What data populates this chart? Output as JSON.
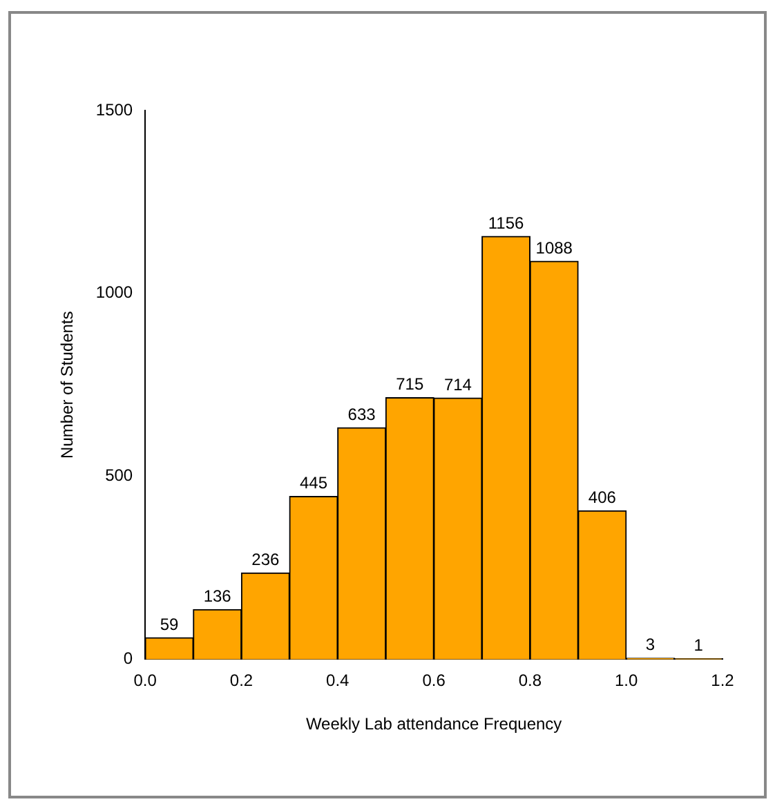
{
  "chart_data": {
    "type": "histogram",
    "xlabel": "Weekly Lab attendance Frequency",
    "ylabel": "Number of Students",
    "bins": [
      0,
      0.1,
      0.2,
      0.3,
      0.4,
      0.5,
      0.6,
      0.7,
      0.8,
      0.9,
      1.0,
      1.1,
      1.2
    ],
    "values": [
      59,
      136,
      236,
      445,
      633,
      715,
      714,
      1156,
      1088,
      406,
      3,
      1
    ],
    "color": "#ffa500",
    "xlim": [
      0,
      1.2
    ],
    "xticks": [
      {
        "value": 0,
        "label": "0.0"
      },
      {
        "value": 0.2,
        "label": "0.2"
      },
      {
        "value": 0.4,
        "label": "0.4"
      },
      {
        "value": 0.6,
        "label": "0.6"
      },
      {
        "value": 0.8,
        "label": "0.8"
      },
      {
        "value": 1.0,
        "label": "1.0"
      },
      {
        "value": 1.2,
        "label": "1.2"
      }
    ],
    "ylim": [
      0,
      1500
    ],
    "yticks": [
      0,
      500,
      1000,
      1500
    ],
    "data_labels": true,
    "grid": false,
    "legend": false
  }
}
